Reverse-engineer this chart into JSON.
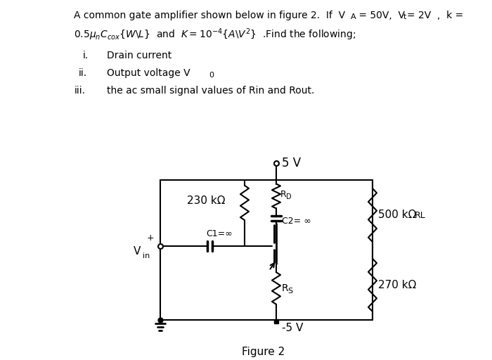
{
  "bg_color": "#ffffff",
  "text_color": "#000000",
  "figure_label": "Figure 2",
  "supply_top": "5 V",
  "supply_bot": "-5 V",
  "r_230": "230 kΩ",
  "rd_label": "R",
  "rd_sub": "D",
  "c2_label": "C2= ∞",
  "r_500": "500 kΩ",
  "rl_label": "RL",
  "r_270": "270 kΩ",
  "c1_label": "C1=∞",
  "rs_label": "R",
  "rs_sub": "S",
  "vin_label_main": "V",
  "vin_label_sub": "in"
}
